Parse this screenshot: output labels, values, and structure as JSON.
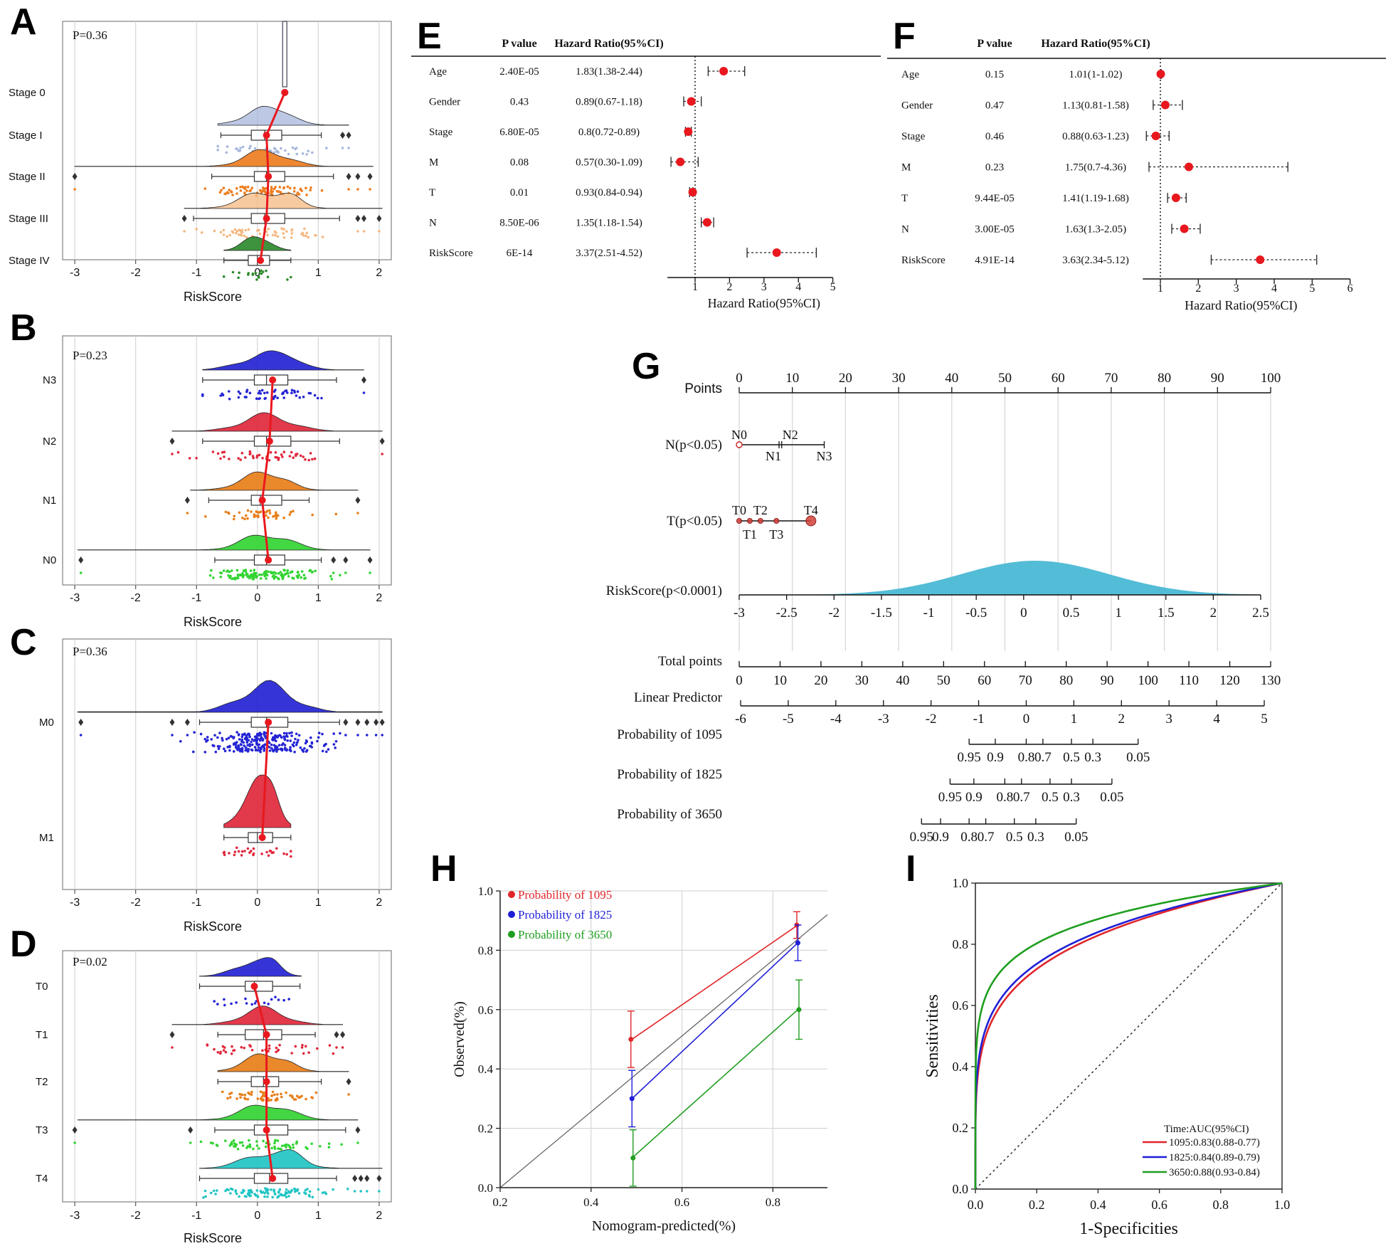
{
  "panels": {
    "A": {
      "label": "A",
      "p": "P=0.36",
      "xlabel": "RiskScore",
      "xticks": [
        "-3",
        "-2",
        "-1",
        "0",
        "1",
        "2"
      ],
      "groups": [
        {
          "name": "Stage 0",
          "color": "#666666",
          "median": 0.45,
          "q1": 0.44,
          "q3": 0.46,
          "wlo": 0.44,
          "whi": 0.46,
          "mean": 0.45,
          "dmin": 0.44,
          "dmax": 0.46,
          "spread": 0.01,
          "pts": 1,
          "out": []
        },
        {
          "name": "Stage I",
          "color": "#a7b6dc",
          "median": 0.12,
          "q1": -0.1,
          "q3": 0.4,
          "wlo": -0.6,
          "whi": 1.05,
          "mean": 0.15,
          "dmin": -0.65,
          "dmax": 1.5,
          "spread": 0.35,
          "pts": 40,
          "out": [
            1.4,
            1.5
          ]
        },
        {
          "name": "Stage II",
          "color": "#ed7d21",
          "median": 0.15,
          "q1": -0.05,
          "q3": 0.45,
          "wlo": -0.75,
          "whi": 1.25,
          "mean": 0.18,
          "dmin": -3.0,
          "dmax": 1.9,
          "spread": 0.35,
          "pts": 80,
          "out": [
            -3.0,
            1.5,
            1.65,
            1.85
          ]
        },
        {
          "name": "Stage III",
          "color": "#f5b880",
          "median": 0.12,
          "q1": -0.1,
          "q3": 0.45,
          "wlo": -1.05,
          "whi": 1.35,
          "mean": 0.15,
          "dmin": -1.2,
          "dmax": 2.05,
          "spread": 0.38,
          "pts": 60,
          "out": [
            -1.2,
            1.65,
            1.75,
            2.0
          ]
        },
        {
          "name": "Stage IV",
          "color": "#2e8b2e",
          "median": 0.0,
          "q1": -0.15,
          "q3": 0.2,
          "wlo": -0.55,
          "whi": 0.55,
          "mean": 0.05,
          "dmin": -0.55,
          "dmax": 0.55,
          "spread": 0.2,
          "pts": 20,
          "out": []
        }
      ]
    },
    "B": {
      "label": "B",
      "p": "P=0.23",
      "xlabel": "RiskScore",
      "xticks": [
        "-3",
        "-2",
        "-1",
        "0",
        "1",
        "2"
      ],
      "groups": [
        {
          "name": "N3",
          "color": "#2424d4",
          "median": 0.15,
          "q1": -0.05,
          "q3": 0.5,
          "wlo": -0.9,
          "whi": 1.3,
          "mean": 0.25,
          "dmin": -0.9,
          "dmax": 1.75,
          "spread": 0.4,
          "pts": 55,
          "out": [
            1.75
          ]
        },
        {
          "name": "N2",
          "color": "#e0283c",
          "median": 0.15,
          "q1": -0.05,
          "q3": 0.55,
          "wlo": -0.9,
          "whi": 1.35,
          "mean": 0.2,
          "dmin": -1.4,
          "dmax": 2.05,
          "spread": 0.4,
          "pts": 50,
          "out": [
            -1.4,
            2.05
          ]
        },
        {
          "name": "N1",
          "color": "#e87e1a",
          "median": 0.05,
          "q1": -0.1,
          "q3": 0.4,
          "wlo": -0.8,
          "whi": 0.85,
          "mean": 0.08,
          "dmin": -1.1,
          "dmax": 1.65,
          "spread": 0.35,
          "pts": 45,
          "out": [
            -1.15,
            1.65
          ]
        },
        {
          "name": "N0",
          "color": "#33d433",
          "median": 0.15,
          "q1": -0.05,
          "q3": 0.45,
          "wlo": -0.7,
          "whi": 1.05,
          "mean": 0.18,
          "dmin": -2.95,
          "dmax": 1.85,
          "spread": 0.38,
          "pts": 130,
          "out": [
            -2.9,
            1.25,
            1.45,
            1.85
          ]
        }
      ]
    },
    "C": {
      "label": "C",
      "p": "P=0.36",
      "xlabel": "RiskScore",
      "xticks": [
        "-3",
        "-2",
        "-1",
        "0",
        "1",
        "2"
      ],
      "groups": [
        {
          "name": "M0",
          "color": "#2424d4",
          "median": 0.15,
          "q1": -0.1,
          "q3": 0.5,
          "wlo": -0.95,
          "whi": 1.35,
          "mean": 0.18,
          "dmin": -2.95,
          "dmax": 2.05,
          "spread": 0.42,
          "pts": 260,
          "out": [
            -2.9,
            -1.4,
            -1.15,
            1.45,
            1.65,
            1.8,
            1.95,
            2.05
          ]
        },
        {
          "name": "M1",
          "color": "#e0283c",
          "median": 0.0,
          "q1": -0.15,
          "q3": 0.25,
          "wlo": -0.55,
          "whi": 0.55,
          "mean": 0.08,
          "dmin": -0.55,
          "dmax": 0.55,
          "spread": 0.25,
          "pts": 30,
          "out": []
        }
      ]
    },
    "D": {
      "label": "D",
      "p": "P=0.02",
      "xlabel": "RiskScore",
      "xticks": [
        "-3",
        "-2",
        "-1",
        "0",
        "1",
        "2"
      ],
      "groups": [
        {
          "name": "T0",
          "color": "#2424d4",
          "median": -0.05,
          "q1": -0.2,
          "q3": 0.25,
          "wlo": -0.95,
          "whi": 0.7,
          "mean": -0.05,
          "dmin": -0.95,
          "dmax": 0.72,
          "spread": 0.3,
          "pts": 18,
          "out": []
        },
        {
          "name": "T1",
          "color": "#e0283c",
          "median": 0.1,
          "q1": -0.2,
          "q3": 0.4,
          "wlo": -0.65,
          "whi": 0.95,
          "mean": 0.15,
          "dmin": -1.4,
          "dmax": 1.4,
          "spread": 0.35,
          "pts": 40,
          "out": [
            -1.4,
            1.3,
            1.4
          ]
        },
        {
          "name": "T2",
          "color": "#e87e1a",
          "median": 0.1,
          "q1": -0.1,
          "q3": 0.35,
          "wlo": -0.65,
          "whi": 1.05,
          "mean": 0.15,
          "dmin": -0.65,
          "dmax": 1.5,
          "spread": 0.33,
          "pts": 60,
          "out": [
            1.5
          ]
        },
        {
          "name": "T3",
          "color": "#33d433",
          "median": 0.15,
          "q1": -0.05,
          "q3": 0.5,
          "wlo": -0.7,
          "whi": 1.45,
          "mean": 0.15,
          "dmin": -2.95,
          "dmax": 1.65,
          "spread": 0.38,
          "pts": 65,
          "out": [
            -3.0,
            -1.1,
            1.65
          ]
        },
        {
          "name": "T4",
          "color": "#22c4c4",
          "median": 0.2,
          "q1": -0.05,
          "q3": 0.5,
          "wlo": -0.95,
          "whi": 1.3,
          "mean": 0.25,
          "dmin": -0.95,
          "dmax": 2.05,
          "spread": 0.4,
          "pts": 100,
          "out": [
            1.6,
            1.7,
            1.8,
            2.0
          ]
        }
      ]
    },
    "E": {
      "label": "E",
      "col_p": "P value",
      "col_hr": "Hazard Ratio(95%CI)",
      "xlabel": "Hazard Ratio(95%CI)",
      "xticks": [
        "1",
        "2",
        "3",
        "4",
        "5"
      ],
      "xmax": 5,
      "rows": [
        {
          "name": "Age",
          "p": "2.40E-05",
          "hr": "1.83(1.38-2.44)",
          "est": 1.83,
          "lo": 1.38,
          "hi": 2.44
        },
        {
          "name": "Gender",
          "p": "0.43",
          "hr": "0.89(0.67-1.18)",
          "est": 0.89,
          "lo": 0.67,
          "hi": 1.18
        },
        {
          "name": "Stage",
          "p": "6.80E-05",
          "hr": "0.8(0.72-0.89)",
          "est": 0.8,
          "lo": 0.72,
          "hi": 0.89
        },
        {
          "name": "M",
          "p": "0.08",
          "hr": "0.57(0.30-1.09)",
          "est": 0.57,
          "lo": 0.3,
          "hi": 1.09
        },
        {
          "name": "T",
          "p": "0.01",
          "hr": "0.93(0.84-0.94)",
          "est": 0.93,
          "lo": 0.84,
          "hi": 0.94
        },
        {
          "name": "N",
          "p": "8.50E-06",
          "hr": "1.35(1.18-1.54)",
          "est": 1.35,
          "lo": 1.18,
          "hi": 1.54
        },
        {
          "name": "RiskScore",
          "p": "6E-14",
          "hr": "3.37(2.51-4.52)",
          "est": 3.37,
          "lo": 2.51,
          "hi": 4.52
        }
      ]
    },
    "F": {
      "label": "F",
      "col_p": "P value",
      "col_hr": "Hazard Ratio(95%CI)",
      "xlabel": "Hazard Ratio(95%CI)",
      "xticks": [
        "1",
        "2",
        "3",
        "4",
        "5",
        "6"
      ],
      "xmax": 6,
      "rows": [
        {
          "name": "Age",
          "p": "0.15",
          "hr": "1.01(1-1.02)",
          "est": 1.01,
          "lo": 1.0,
          "hi": 1.02
        },
        {
          "name": "Gender",
          "p": "0.47",
          "hr": "1.13(0.81-1.58)",
          "est": 1.13,
          "lo": 0.81,
          "hi": 1.58
        },
        {
          "name": "Stage",
          "p": "0.46",
          "hr": "0.88(0.63-1.23)",
          "est": 0.88,
          "lo": 0.63,
          "hi": 1.23
        },
        {
          "name": "M",
          "p": "0.23",
          "hr": "1.75(0.7-4.36)",
          "est": 1.75,
          "lo": 0.7,
          "hi": 4.36
        },
        {
          "name": "T",
          "p": "9.44E-05",
          "hr": "1.41(1.19-1.68)",
          "est": 1.41,
          "lo": 1.19,
          "hi": 1.68
        },
        {
          "name": "N",
          "p": "3.00E-05",
          "hr": "1.63(1.3-2.05)",
          "est": 1.63,
          "lo": 1.3,
          "hi": 2.05
        },
        {
          "name": "RiskScore",
          "p": "4.91E-14",
          "hr": "3.63(2.34-5.12)",
          "est": 3.63,
          "lo": 2.34,
          "hi": 5.12
        }
      ]
    },
    "G": {
      "label": "G",
      "points_label": "Points",
      "points_ticks": [
        "0",
        "10",
        "20",
        "30",
        "40",
        "50",
        "60",
        "70",
        "80",
        "90",
        "100"
      ],
      "n_label": "N(p<0.05)",
      "n_levels": [
        "N0",
        "N1",
        "N2",
        "N3"
      ],
      "n_points": [
        0,
        7.5,
        8,
        16
      ],
      "t_label": "T(p<0.05)",
      "t_levels": [
        "T0",
        "T1",
        "T2",
        "T3",
        "T4"
      ],
      "t_points": [
        0,
        2,
        4,
        7,
        13.5
      ],
      "rs_label": "RiskScore(p<0.0001)",
      "rs_ticks": [
        "-3",
        "-2.5",
        "-2",
        "-1.5",
        "-1",
        "-0.5",
        "0",
        "0.5",
        "1",
        "1.5",
        "2",
        "2.5"
      ],
      "total_label": "Total points",
      "total_ticks": [
        "0",
        "10",
        "20",
        "30",
        "40",
        "50",
        "60",
        "70",
        "80",
        "90",
        "100",
        "110",
        "120",
        "130"
      ],
      "lp_label": "Linear Predictor",
      "lp_ticks": [
        "-6",
        "-5",
        "-4",
        "-3",
        "-2",
        "-1",
        "0",
        "1",
        "2",
        "3",
        "4",
        "5"
      ],
      "probabilities": [
        {
          "label": "Probability of 1095",
          "ticks": [
            "0.95",
            "0.9",
            "0.8",
            "0.7",
            "0.5",
            "0.3",
            "0.05"
          ],
          "lp": [
            -1.2,
            -0.65,
            0.0,
            0.35,
            0.95,
            1.4,
            2.35
          ]
        },
        {
          "label": "Probability of 1825",
          "ticks": [
            "0.95",
            "0.9",
            "0.8",
            "0.7",
            "0.5",
            "0.3",
            "0.05"
          ],
          "lp": [
            -1.6,
            -1.1,
            -0.45,
            -0.1,
            0.5,
            0.95,
            1.8
          ]
        },
        {
          "label": "Probability of 3650",
          "ticks": [
            "0.95",
            "0.9",
            "0.8",
            "0.7",
            "0.5",
            "0.3",
            "0.05"
          ],
          "lp": [
            -2.2,
            -1.8,
            -1.2,
            -0.85,
            -0.25,
            0.2,
            1.05
          ]
        }
      ]
    },
    "H": {
      "label": "H",
      "xlabel": "Nomogram-predicted(%)",
      "ylabel": "Observed(%)",
      "xticks": [
        "0.2",
        "0.4",
        "0.6",
        "0.8"
      ],
      "yticks": [
        "0.0",
        "0.2",
        "0.4",
        "0.6",
        "0.8",
        "1.0"
      ],
      "xlim": [
        0.2,
        0.92
      ],
      "ylim": [
        0.0,
        1.0
      ],
      "series": [
        {
          "name": "Probability of 1095",
          "color": "#e0262b",
          "x": [
            0.49,
            0.855
          ],
          "y": [
            0.5,
            0.885
          ],
          "err": [
            0.095,
            0.045
          ]
        },
        {
          "name": "Probability of 1825",
          "color": "#1f1fd6",
          "x": [
            0.49,
            0.855
          ],
          "y": [
            0.3,
            0.825
          ],
          "err": [
            0.095,
            0.06
          ]
        },
        {
          "name": "Probability of 3650",
          "color": "#1f9e1f",
          "x": [
            0.49,
            0.855
          ],
          "y": [
            0.1,
            0.6
          ],
          "err": [
            0.095,
            0.1
          ]
        }
      ]
    },
    "I": {
      "label": "I",
      "xlabel": "1-Specificities",
      "ylabel": "Sensitivities",
      "xticks": [
        "0.0",
        "0.2",
        "0.4",
        "0.6",
        "0.8",
        "1.0"
      ],
      "yticks": [
        "0.0",
        "0.2",
        "0.4",
        "0.6",
        "0.8",
        "1.0"
      ],
      "legend_title": "Time:AUC(95%CI)",
      "series": [
        {
          "name": "1095:0.83(0.88-0.77)",
          "color": "#e0262b",
          "auc": 0.83
        },
        {
          "name": "1825:0.84(0.89-0.79)",
          "color": "#1f1fd6",
          "auc": 0.84
        },
        {
          "name": "3650:0.88(0.93-0.84)",
          "color": "#1f9e1f",
          "auc": 0.88
        }
      ]
    }
  }
}
